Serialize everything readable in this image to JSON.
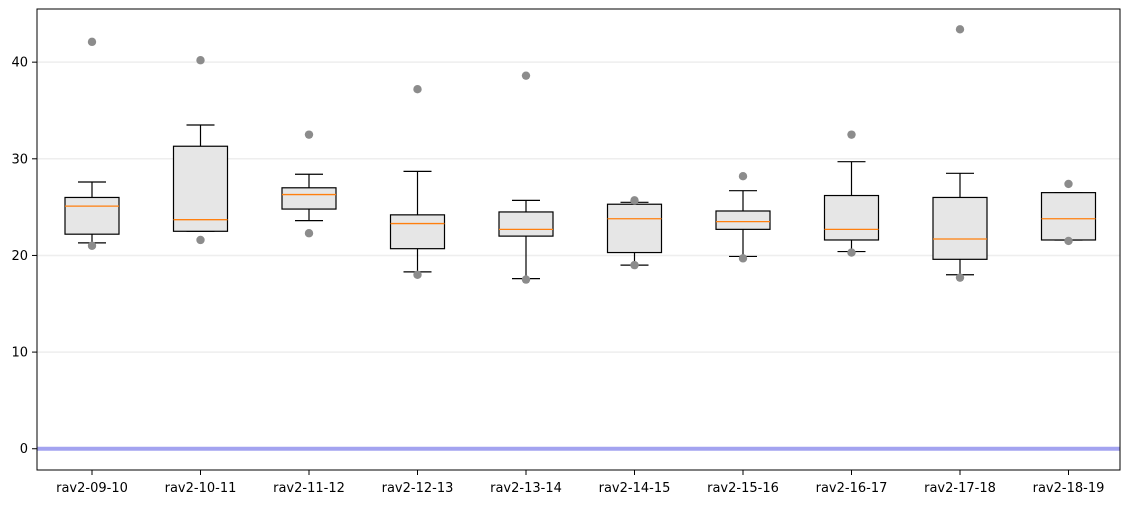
{
  "chart_data": {
    "type": "box",
    "title": "",
    "xlabel": "",
    "ylabel": "",
    "categories": [
      "rav2-09-10",
      "rav2-10-11",
      "rav2-11-12",
      "rav2-12-13",
      "rav2-13-14",
      "rav2-14-15",
      "rav2-15-16",
      "rav2-16-17",
      "rav2-17-18",
      "rav2-18-19"
    ],
    "ylim": [
      -2.2,
      45.5
    ],
    "yticks": [
      0,
      10,
      20,
      30,
      40
    ],
    "grid": {
      "axis": "y",
      "on": true
    },
    "reference_line": {
      "y": 0,
      "color": "#a3a3f0"
    },
    "colors": {
      "box_fill": "#e6e6e6",
      "box_edge": "#000000",
      "median": "#ff7f0e",
      "points": "#8c8c8c",
      "grid": "#eeeeee"
    },
    "boxes": [
      {
        "q1": 22.2,
        "median": 25.1,
        "q3": 26.0,
        "whisker_low": 21.3,
        "whisker_high": 27.6
      },
      {
        "q1": 22.5,
        "median": 23.7,
        "q3": 31.3,
        "whisker_low": 22.5,
        "whisker_high": 33.5
      },
      {
        "q1": 24.8,
        "median": 26.3,
        "q3": 27.0,
        "whisker_low": 23.6,
        "whisker_high": 28.4
      },
      {
        "q1": 20.7,
        "median": 23.3,
        "q3": 24.2,
        "whisker_low": 18.3,
        "whisker_high": 28.7
      },
      {
        "q1": 22.0,
        "median": 22.7,
        "q3": 24.5,
        "whisker_low": 17.6,
        "whisker_high": 25.7
      },
      {
        "q1": 20.3,
        "median": 23.8,
        "q3": 25.3,
        "whisker_low": 19.0,
        "whisker_high": 25.5
      },
      {
        "q1": 22.7,
        "median": 23.5,
        "q3": 24.6,
        "whisker_low": 19.9,
        "whisker_high": 26.7
      },
      {
        "q1": 21.6,
        "median": 22.7,
        "q3": 26.2,
        "whisker_low": 20.4,
        "whisker_high": 29.7
      },
      {
        "q1": 19.6,
        "median": 21.7,
        "q3": 26.0,
        "whisker_low": 18.0,
        "whisker_high": 28.5
      },
      {
        "q1": 21.6,
        "median": 23.8,
        "q3": 26.5,
        "whisker_low": 21.6,
        "whisker_high": 26.5
      }
    ],
    "points": [
      [
        21.0,
        42.1
      ],
      [
        21.6,
        40.2
      ],
      [
        22.3,
        32.5
      ],
      [
        18.0,
        37.2
      ],
      [
        17.5,
        38.6
      ],
      [
        19.0,
        25.7
      ],
      [
        19.7,
        28.2
      ],
      [
        20.3,
        32.5
      ],
      [
        17.7,
        43.4
      ],
      [
        21.5,
        27.4
      ]
    ]
  }
}
